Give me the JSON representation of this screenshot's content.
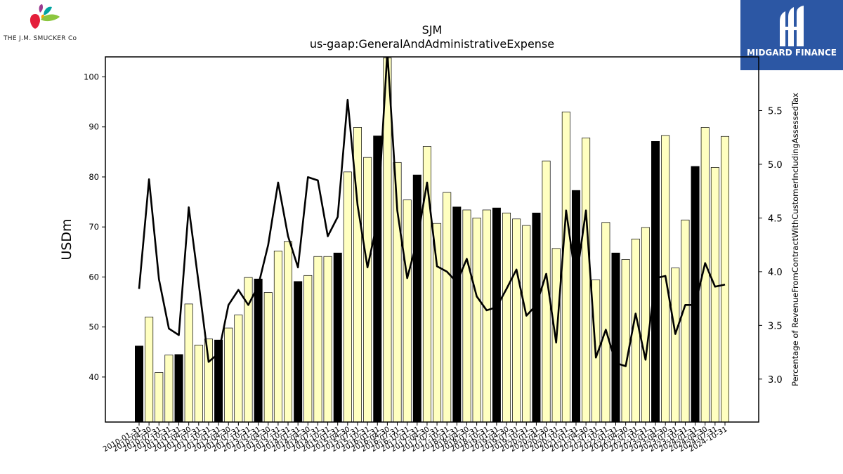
{
  "company": {
    "logo_text": "THE J.M. SMUCKER Co",
    "logo_icon": "fruit-leaf-icon"
  },
  "badge": {
    "text": "MIDGARD FINANCE",
    "icon": "mf-monogram-icon",
    "color": "#2c57a4"
  },
  "chart_data": {
    "type": "bar",
    "title": "SJM",
    "subtitle": "us-gaap:GeneralAndAdministrativeExpense",
    "ylabel": "USDm",
    "y2label": "Percentage of RevenueFromContractWithCustomerIncludingAssessedTax",
    "ylim": [
      31,
      104
    ],
    "y2lim": [
      2.6,
      6.0
    ],
    "yticks": [
      40,
      50,
      60,
      70,
      80,
      90,
      100
    ],
    "y2ticks": [
      "3.0",
      "3.5",
      "4.0",
      "4.5",
      "5.0",
      "5.5"
    ],
    "colors": {
      "annual_bar": "#000000",
      "quarter_bar": "#ffffc0",
      "bar_edge": "#000000",
      "line": "#000000"
    },
    "categories": [
      "2010-01-31",
      "2010-04-30",
      "2010-07-31",
      "2010-10-31",
      "2011-01-31",
      "2011-04-30",
      "2011-07-31",
      "2011-10-31",
      "2012-01-31",
      "2012-04-30",
      "2012-07-31",
      "2012-10-31",
      "2013-01-31",
      "2013-04-30",
      "2013-07-31",
      "2013-10-31",
      "2014-01-31",
      "2014-04-30",
      "2014-07-31",
      "2014-10-31",
      "2015-01-31",
      "2015-04-30",
      "2015-07-31",
      "2015-10-31",
      "2016-01-31",
      "2016-04-30",
      "2016-07-31",
      "2016-10-31",
      "2017-01-31",
      "2017-04-30",
      "2017-07-31",
      "2017-10-31",
      "2018-01-31",
      "2018-04-30",
      "2018-07-31",
      "2018-10-31",
      "2019-01-31",
      "2019-04-30",
      "2019-07-31",
      "2019-10-31",
      "2020-01-31",
      "2020-04-30",
      "2020-07-31",
      "2020-10-31",
      "2021-01-31",
      "2021-04-30",
      "2021-07-31",
      "2021-10-31",
      "2022-01-31",
      "2022-04-30",
      "2022-07-31",
      "2022-10-31",
      "2023-01-31",
      "2023-04-30",
      "2023-07-31",
      "2023-10-31",
      "2024-01-31",
      "2024-04-30",
      "2024-07-31",
      "2024-10-31"
    ],
    "x_tick_labels": [
      "2010-01-31",
      "2010-04-30",
      "2010-07-31",
      "2010-10-31",
      "2011-01-31",
      "2011-04-30",
      "2011-07-31",
      "2011-10-31",
      "2012-01-31",
      "2012-04-30",
      "2012-07-31",
      "2012-10-31",
      "2013-01-31",
      "2013-04-30",
      "2013-07-31",
      "2013-10-31",
      "2014-01-31",
      "2014-04-30",
      "2014-07-31",
      "2014-10-31",
      "2015-01-31",
      "2015-04-30",
      "2015-07-31",
      "2015-10-31",
      "2016-01-31",
      "2016-04-30",
      "2016-07-31",
      "2016-10-31",
      "2017-01-31",
      "2017-04-30",
      "2017-07-31",
      "2017-10-31",
      "2018-01-31",
      "2018-04-30",
      "2018-07-31",
      "2018-10-31",
      "2019-01-31",
      "2019-04-30",
      "2019-07-31",
      "2019-10-31",
      "2020-01-31",
      "2020-04-30",
      "2020-07-31",
      "2020-10-31",
      "2021-01-31",
      "2021-04-30",
      "2021-07-31",
      "2021-10-31",
      "2022-01-31",
      "2022-04-30",
      "2022-07-31",
      "2022-10-31",
      "2023-01-31",
      "2023-04-30",
      "2023-07-31",
      "2023-10-31",
      "2024-01-31",
      "2024-04-30",
      "2024-07-31",
      "2024-10-31"
    ],
    "series": [
      {
        "kind": "bar",
        "values": [
          46.2,
          52.0,
          40.9,
          44.4,
          44.5,
          54.6,
          46.4,
          47.6,
          47.4,
          49.8,
          52.4,
          59.9,
          59.6,
          56.9,
          65.2,
          67.1,
          59.1,
          60.3,
          64.1,
          64.1,
          64.8,
          81.0,
          89.9,
          83.9,
          88.2,
          103.8,
          82.9,
          75.4,
          80.4,
          86.1,
          70.7,
          76.9,
          74.0,
          73.4,
          71.8,
          73.4,
          73.8,
          72.8,
          71.6,
          70.3,
          72.8,
          83.2,
          65.7,
          93.0,
          77.3,
          87.8,
          59.4,
          70.9,
          64.8,
          63.5,
          67.6,
          69.9,
          87.1,
          88.3,
          61.8,
          71.4,
          82.1,
          89.9,
          81.9,
          88.1
        ],
        "annual": [
          true,
          false,
          false,
          false,
          true,
          false,
          false,
          false,
          true,
          false,
          false,
          false,
          true,
          false,
          false,
          false,
          true,
          false,
          false,
          false,
          true,
          false,
          false,
          false,
          true,
          false,
          false,
          false,
          true,
          false,
          false,
          false,
          true,
          false,
          false,
          false,
          true,
          false,
          false,
          false,
          true,
          false,
          false,
          false,
          true,
          false,
          false,
          false,
          true,
          false,
          false,
          false,
          true,
          false,
          false,
          false,
          true,
          false,
          false,
          false
        ]
      },
      {
        "kind": "line",
        "axis": "right",
        "values": [
          3.84,
          4.86,
          3.93,
          3.47,
          3.41,
          4.6,
          3.89,
          3.16,
          3.24,
          3.69,
          3.83,
          3.69,
          3.87,
          4.25,
          4.83,
          4.33,
          4.04,
          4.88,
          4.85,
          4.33,
          4.51,
          5.6,
          4.62,
          4.04,
          4.47,
          6.05,
          4.57,
          3.94,
          4.29,
          4.83,
          4.05,
          4.0,
          3.9,
          4.12,
          3.77,
          3.64,
          3.67,
          3.84,
          4.02,
          3.59,
          3.69,
          3.98,
          3.34,
          4.57,
          3.91,
          4.57,
          3.2,
          3.46,
          3.15,
          3.12,
          3.61,
          3.18,
          3.94,
          3.96,
          3.42,
          3.69,
          3.69,
          4.08,
          3.86,
          3.88
        ]
      }
    ]
  }
}
